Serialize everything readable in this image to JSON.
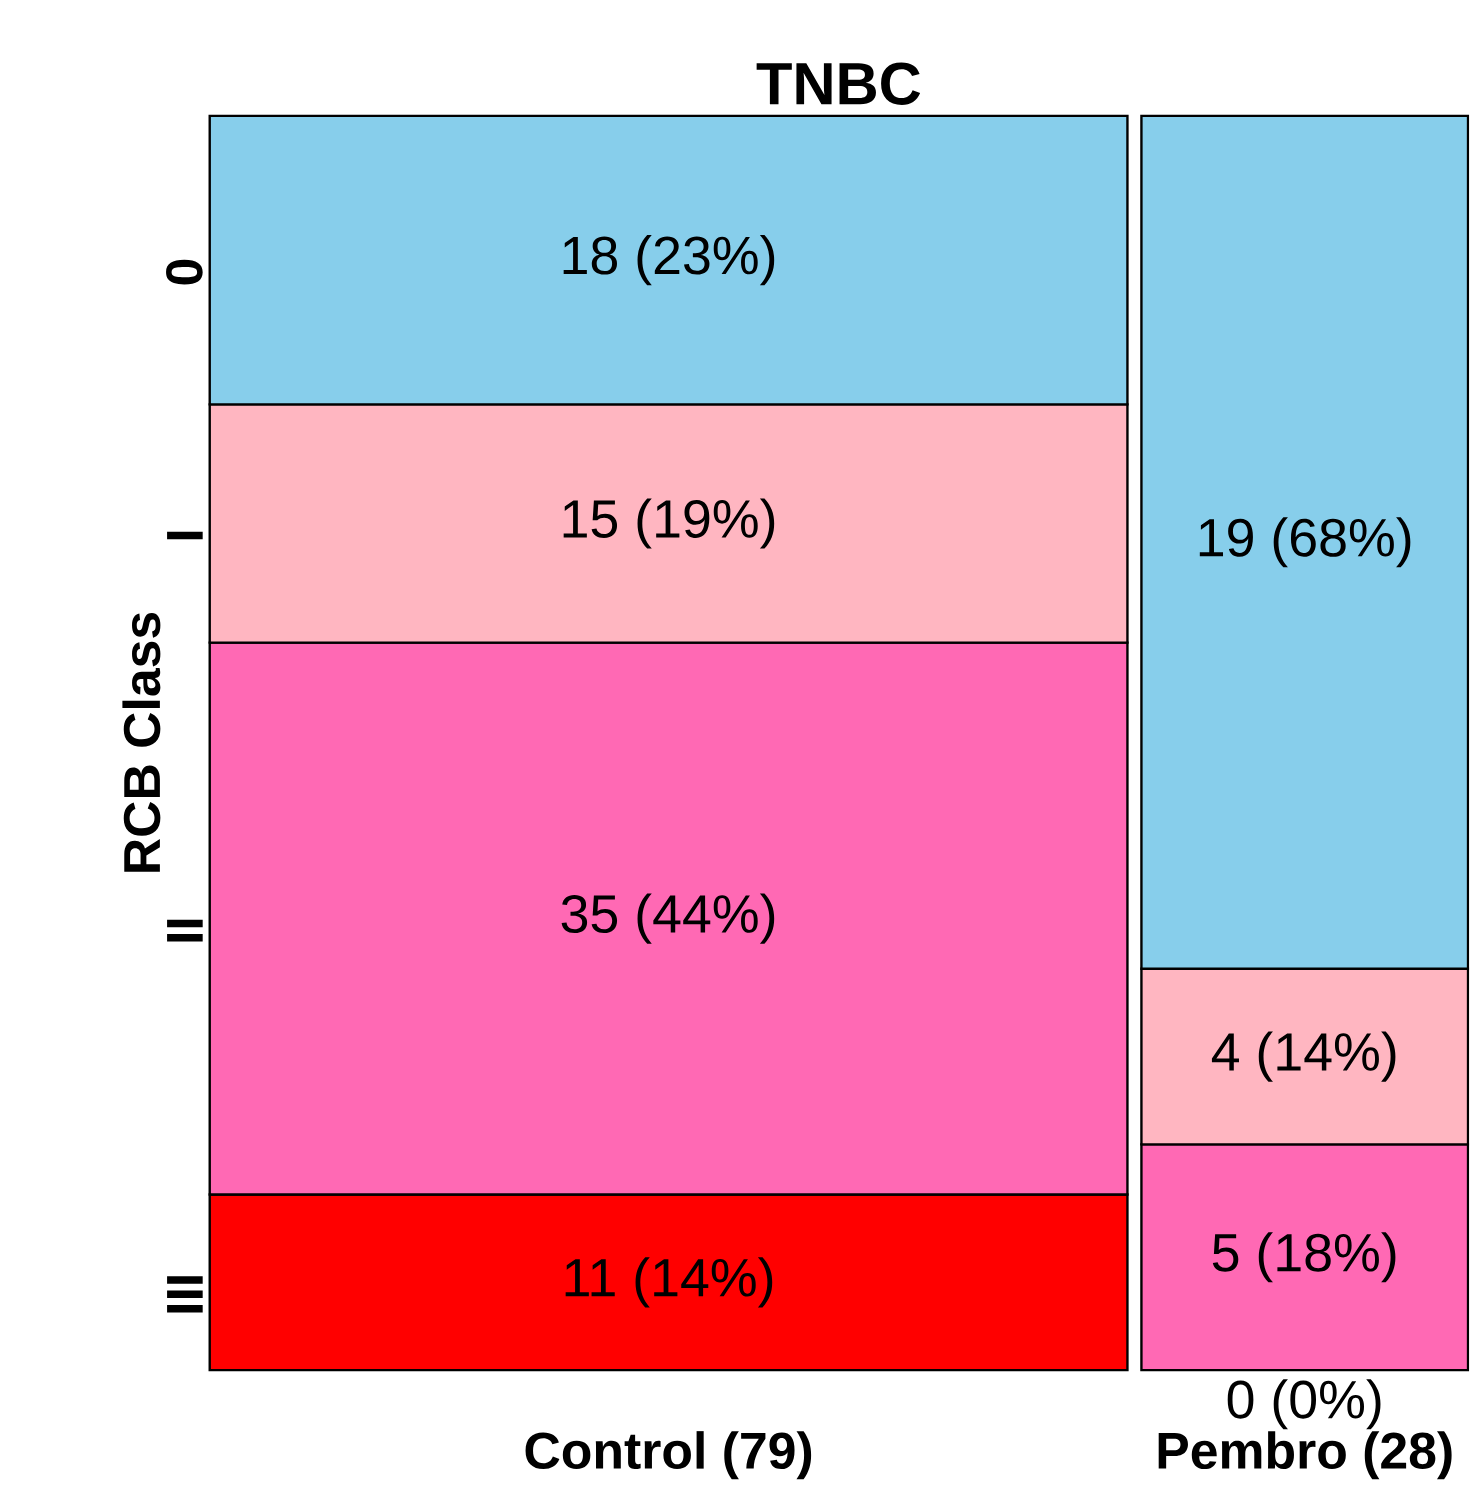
{
  "chart_data": {
    "type": "other",
    "title": "TNBC",
    "ylabel": "RCB Class",
    "categories": [
      "Control (79)",
      "Pembro (28)"
    ],
    "series": [
      {
        "name": "III",
        "color": "#ff0000",
        "values": [
          14,
          0
        ],
        "value_labels": [
          "11 (14%)",
          "0 (0%)"
        ]
      },
      {
        "name": "II",
        "color": "#ff69b4",
        "values": [
          44,
          18
        ],
        "value_labels": [
          "35 (44%)",
          "5 (18%)"
        ]
      },
      {
        "name": "I",
        "color": "#ffb6c1",
        "values": [
          19,
          14
        ],
        "value_labels": [
          "15 (19%)",
          "4 (14%)"
        ]
      },
      {
        "name": "0",
        "color": "#87ceeb",
        "values": [
          23,
          68
        ],
        "value_labels": [
          "18 (23%)",
          "19 (68%)"
        ]
      }
    ]
  }
}
